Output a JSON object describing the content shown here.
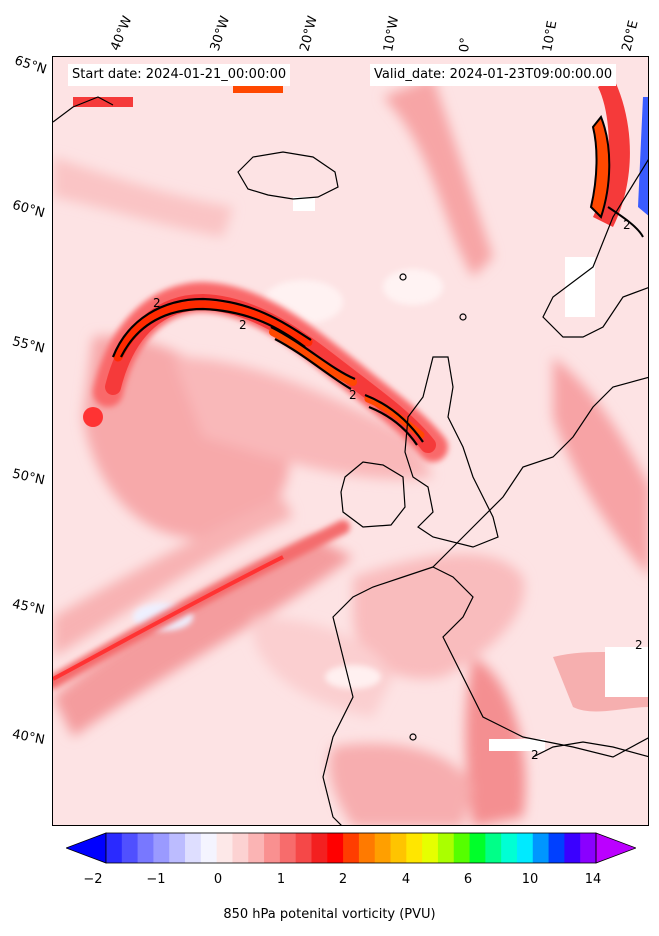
{
  "header": {
    "start_date": "Start date: 2024-01-21_00:00:00",
    "valid_date": "Valid_date: 2024-01-23T09:00:00.00"
  },
  "map": {
    "longitude_labels": [
      "40°W",
      "30°W",
      "20°W",
      "10°W",
      "0°",
      "10°E",
      "20°E"
    ],
    "latitude_labels": [
      "65°N",
      "60°N",
      "55°N",
      "50°N",
      "45°N",
      "40°N"
    ],
    "contour_label": "2"
  },
  "colorbar": {
    "tick_labels": [
      "−2",
      "−1",
      "0",
      "1",
      "2",
      "4",
      "6",
      "10",
      "14"
    ],
    "label": "850 hPa potenital vorticity (PVU)",
    "colors": [
      "#0000ff",
      "#2a2aff",
      "#5050ff",
      "#7878ff",
      "#9a9aff",
      "#bcbcff",
      "#dedeff",
      "#f4f4ff",
      "#fde8e8",
      "#fcd2d2",
      "#fbb4b4",
      "#f99090",
      "#f76c6c",
      "#f54848",
      "#f32020",
      "#ff0000",
      "#ff3d00",
      "#ff7a00",
      "#ff9f00",
      "#ffc400",
      "#ffe600",
      "#e6ff00",
      "#aaff00",
      "#55ff00",
      "#00ff2a",
      "#00ff88",
      "#00ffd4",
      "#00eaff",
      "#0096ff",
      "#0040ff",
      "#3a00ff",
      "#8a00ff",
      "#bb00ff"
    ]
  }
}
